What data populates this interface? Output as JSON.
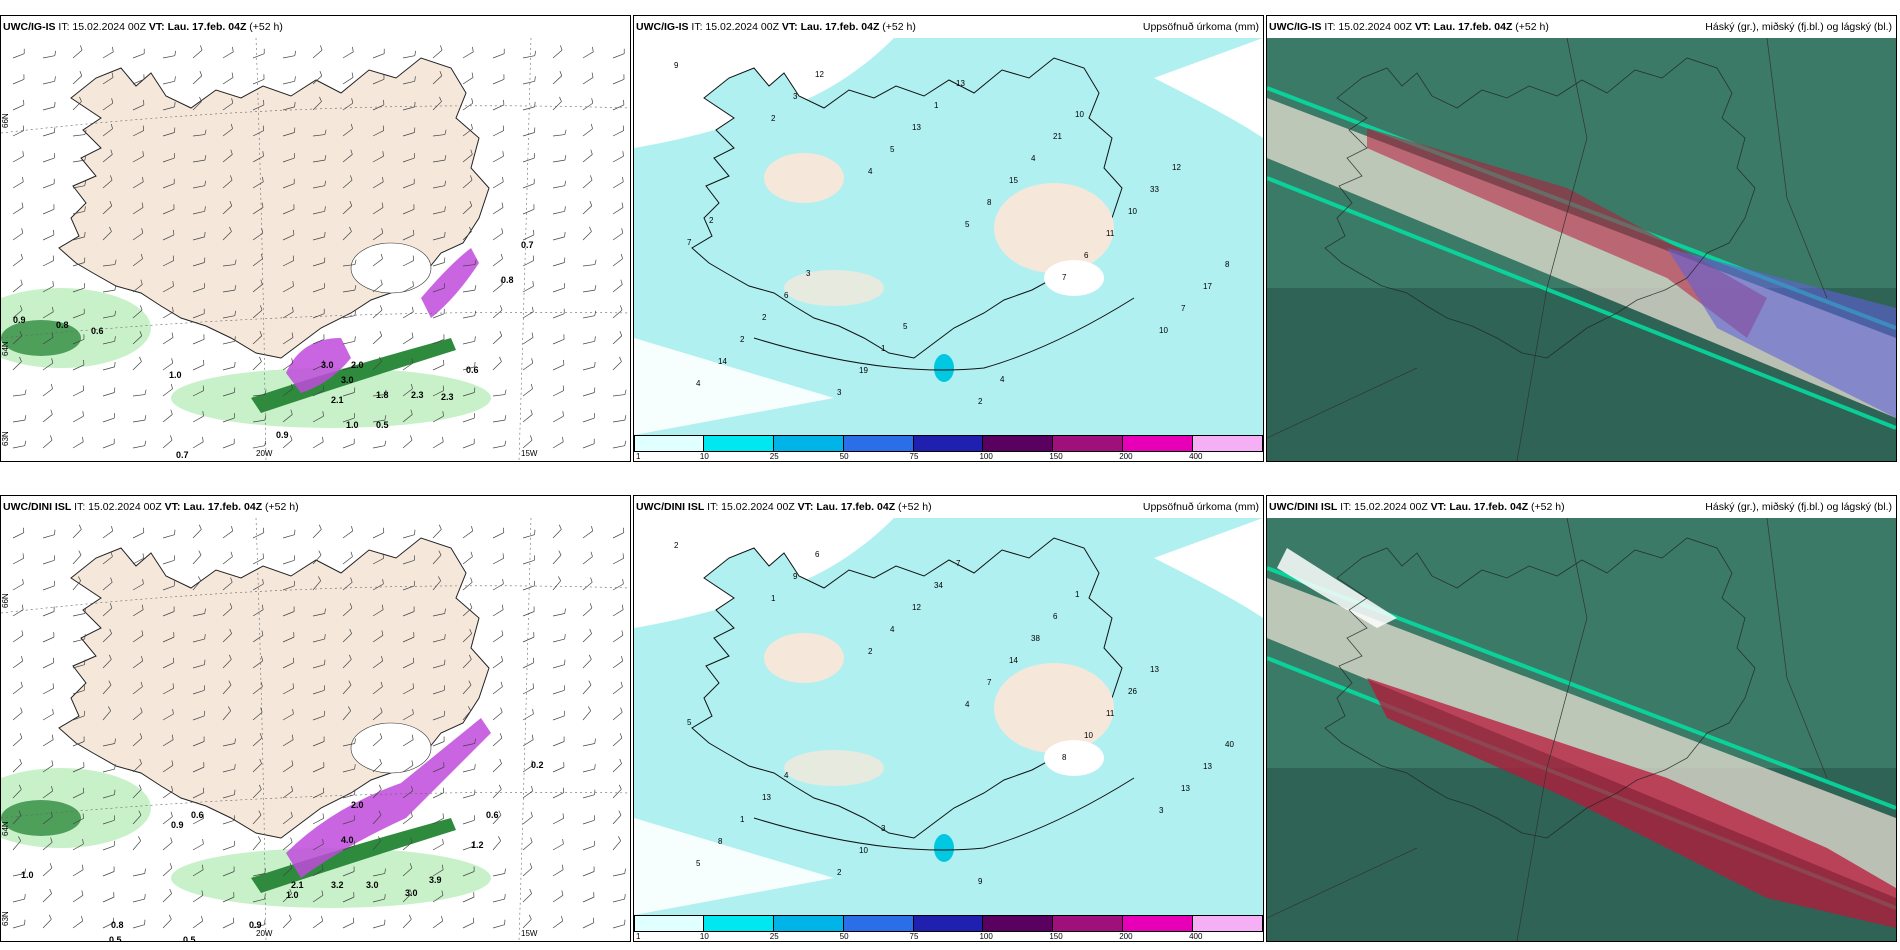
{
  "rows": [
    {
      "model": "UWC/IG-IS",
      "panels": [
        {
          "kind": "wind",
          "model": "UWC/IG-IS",
          "it": "IT: 15.02.2024 00Z",
          "vt_label": "VT: Lau. 17.feb. 04Z",
          "lead": "(+52 h)",
          "right_title": ""
        },
        {
          "kind": "precip",
          "model": "UWC/IG-IS",
          "it": "IT: 15.02.2024 00Z",
          "vt_label": "VT: Lau. 17.feb. 04Z",
          "lead": "(+52 h)",
          "right_title": "Uppsöfnuð úrkoma (mm)"
        },
        {
          "kind": "cloud",
          "model": "UWC/IG-IS",
          "it": "IT: 15.02.2024 00Z",
          "vt_label": "VT: Lau. 17.feb. 04Z",
          "lead": "(+52 h)",
          "right_title": "Háský (gr.), miðský (fj.bl.) og lágský (bl.)"
        }
      ],
      "wind_values": [
        "0.9",
        "0.8",
        "0.6",
        "1.0",
        "3.0",
        "3.0",
        "2.0",
        "2.1",
        "1.8",
        "2.3",
        "2.3",
        "1.0",
        "0.5",
        "0.9",
        "0.7",
        "0.7",
        "0.6",
        "0.8"
      ],
      "precip_values": [
        "9",
        "2",
        "4",
        "5",
        "7",
        "10",
        "4",
        "3",
        "5",
        "8",
        "6",
        "7",
        "14",
        "12",
        "13",
        "15",
        "11",
        "17",
        "2",
        "3",
        "1",
        "4",
        "10",
        "8",
        "2",
        "19",
        "13",
        "21",
        "33",
        "7",
        "6",
        "1",
        "2",
        "10",
        "12",
        "2",
        "3",
        "5",
        "4"
      ]
    },
    {
      "model": "UWC/DINI ISL",
      "panels": [
        {
          "kind": "wind",
          "model": "UWC/DINI ISL",
          "it": "IT: 15.02.2024 00Z",
          "vt_label": "VT: Lau. 17.feb. 04Z",
          "lead": "(+52 h)",
          "right_title": ""
        },
        {
          "kind": "precip",
          "model": "UWC/DINI ISL",
          "it": "IT: 15.02.2024 00Z",
          "vt_label": "VT: Lau. 17.feb. 04Z",
          "lead": "(+52 h)",
          "right_title": "Uppsöfnuð úrkoma (mm)"
        },
        {
          "kind": "cloud",
          "model": "UWC/DINI ISL",
          "it": "IT: 15.02.2024 00Z",
          "vt_label": "VT: Lau. 17.feb. 04Z",
          "lead": "(+52 h)",
          "right_title": "Háský (gr.), miðský (fj.bl.) og lágský (bl.)"
        }
      ],
      "wind_values": [
        "1.0",
        "0.6",
        "0.9",
        "0.8",
        "0.5",
        "0.5",
        "0.9",
        "1.0",
        "2.1",
        "4.0",
        "2.0",
        "3.2",
        "3.0",
        "3.9",
        "3.0",
        "0.6",
        "0.2",
        "1.2"
      ],
      "precip_values": [
        "2",
        "1",
        "2",
        "4",
        "8",
        "3",
        "5",
        "9",
        "4",
        "7",
        "10",
        "13",
        "8",
        "6",
        "12",
        "14",
        "11",
        "13",
        "1",
        "2",
        "34",
        "38",
        "26",
        "40",
        "13",
        "10",
        "7",
        "6",
        "13",
        "5",
        "4",
        "3",
        "9",
        "1"
      ]
    }
  ],
  "axis_labels": {
    "lat66": "66N",
    "lat64": "64N",
    "lat63": "63N",
    "lon20": "20W",
    "lon15": "15W"
  },
  "colorbar": {
    "ticks": [
      "1",
      "10",
      "25",
      "50",
      "75",
      "100",
      "150",
      "200",
      "400"
    ],
    "colors": [
      "#e0ffff",
      "#00e8ef",
      "#00b4e8",
      "#2a6fe8",
      "#2020b0",
      "#5a0060",
      "#a0107a",
      "#e800b8",
      "#f5b0f5"
    ]
  },
  "colors": {
    "land": "#f5e8db",
    "sea_precip": "#b0f0f0",
    "wind_green_light": "#c9f1c9",
    "wind_green_dark": "#2e8b3e",
    "purple": "#c04adc",
    "cloud_base": "#3b7a66",
    "cloud_dark": "#2b5a4e",
    "cloud_red": "#b8183a",
    "cloud_blue": "#6060d8"
  }
}
